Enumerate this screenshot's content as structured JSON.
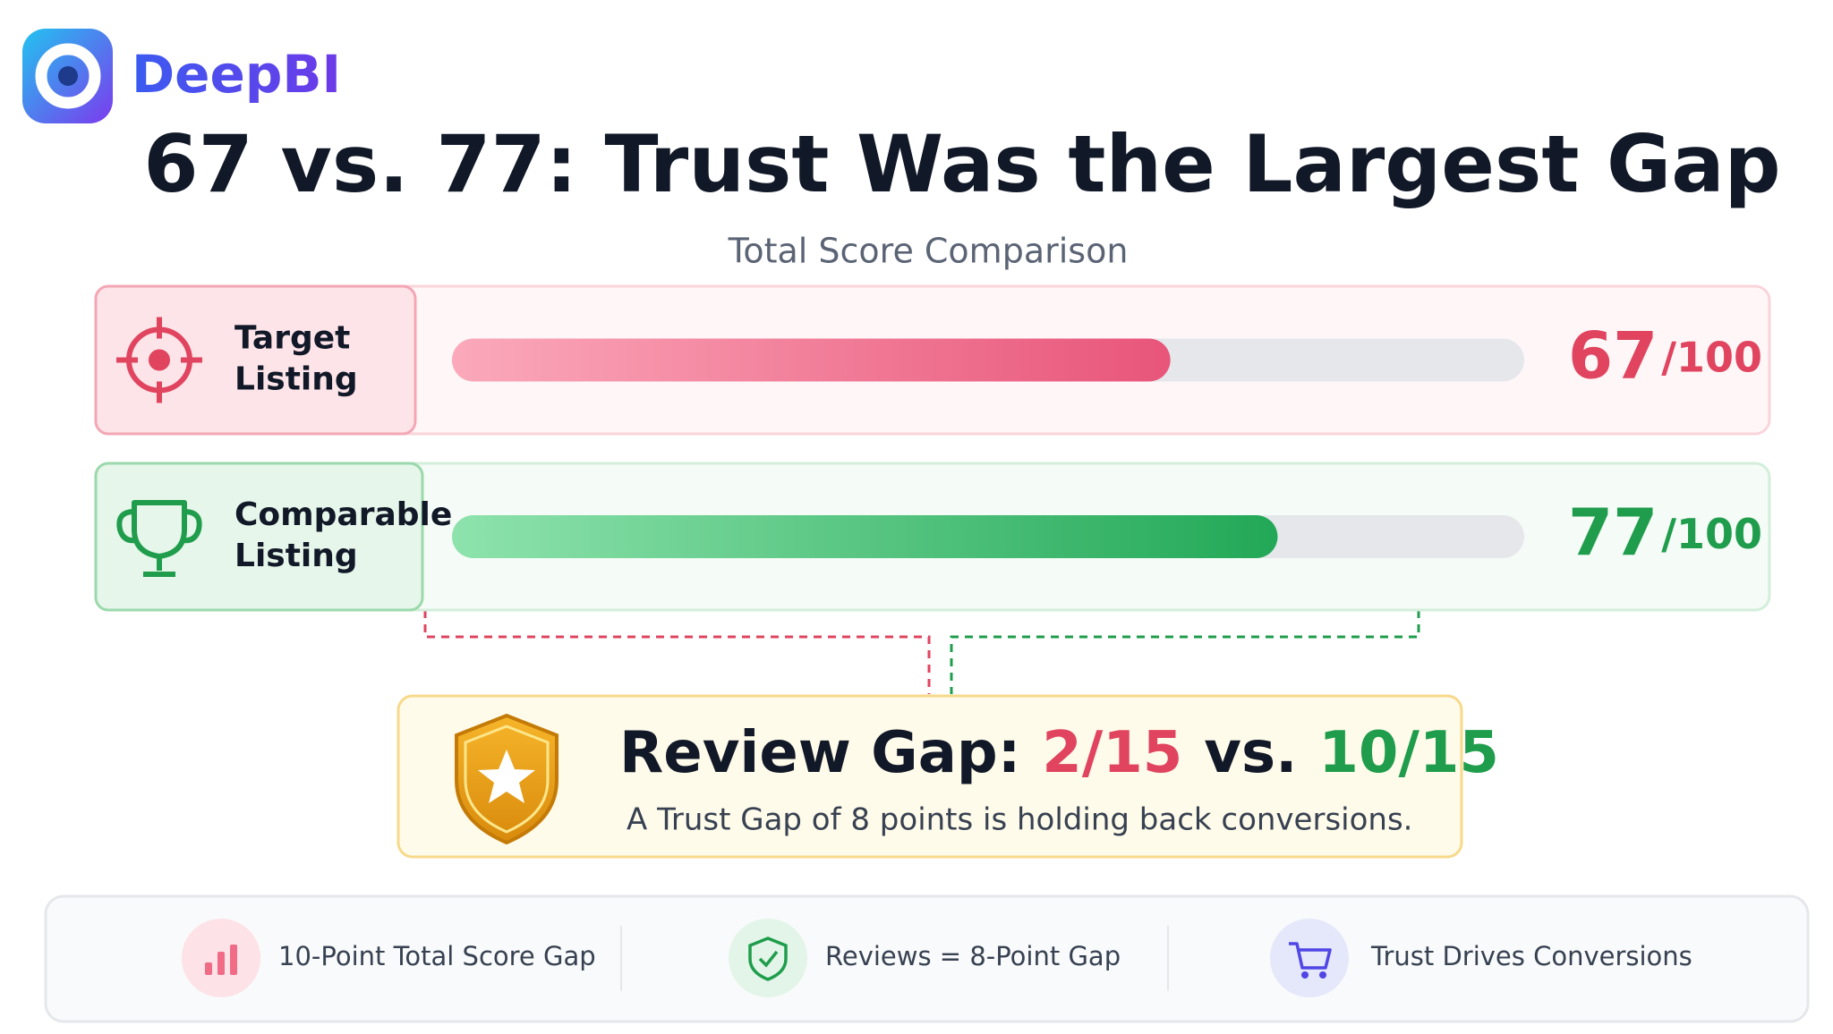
{
  "brand": "DeepBI",
  "title": "67 vs. 77: Trust Was the Largest Gap",
  "subtitle": "Total Score Comparison",
  "scores": [
    {
      "label_lines": [
        "Target",
        "Listing"
      ],
      "value": 67,
      "max": 100,
      "max_label": "/100",
      "color": "#e0445f"
    },
    {
      "label_lines": [
        "Comparable",
        "Listing"
      ],
      "value": 77,
      "max": 100,
      "max_label": "/100",
      "color": "#1f9d4c"
    }
  ],
  "review": {
    "heading": "Review Gap:",
    "target": "2/15",
    "joiner": "vs.",
    "comparable": "10/15",
    "note": "A Trust Gap of 8 points is holding back conversions."
  },
  "footer": [
    "10-Point Total Score Gap",
    "Reviews = 8-Point Gap",
    "Trust Drives Conversions"
  ]
}
